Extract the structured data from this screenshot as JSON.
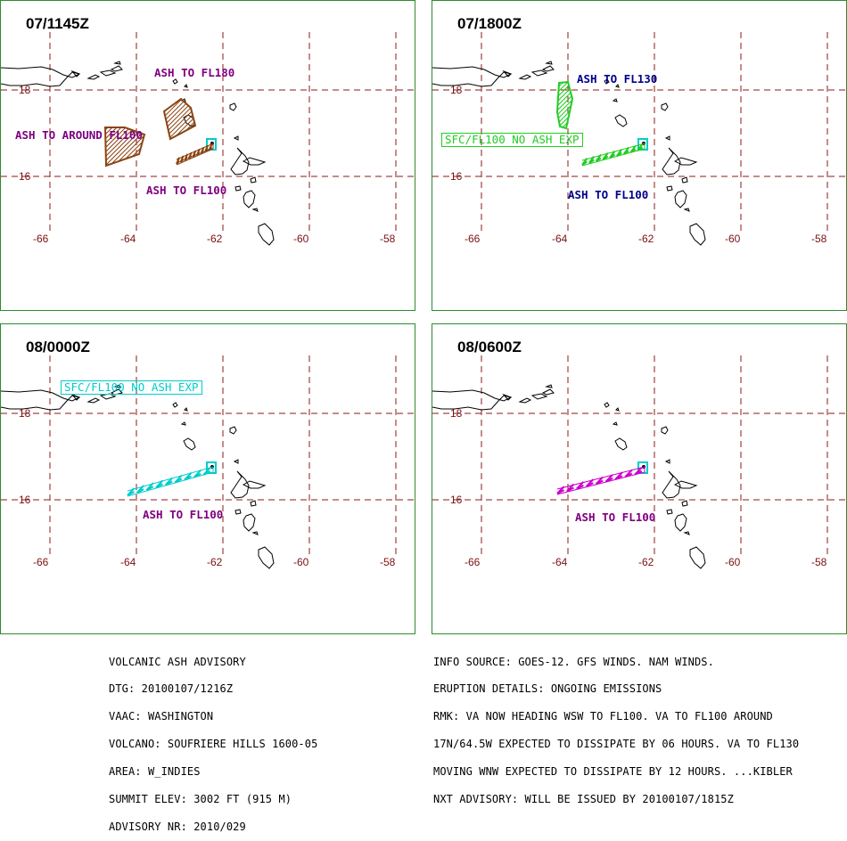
{
  "panels": [
    {
      "time": "07/1145Z",
      "labels": [
        {
          "text": "ASH TO FL180",
          "color": "#800080"
        },
        {
          "text": "ASH TO AROUND FL100",
          "color": "#800080"
        },
        {
          "text": "ASH TO FL100",
          "color": "#800080"
        }
      ]
    },
    {
      "time": "07/1800Z",
      "labels": [
        {
          "text": "ASH TO FL130",
          "color": "#00008b"
        },
        {
          "text": "ASH TO FL100",
          "color": "#00008b"
        }
      ],
      "box_label": {
        "text": "SFC/FL100 NO ASH EXP",
        "color": "#22cc22"
      }
    },
    {
      "time": "08/0000Z",
      "labels": [
        {
          "text": "ASH TO FL100",
          "color": "#800080"
        }
      ],
      "box_label": {
        "text": "SFC/FL100 NO ASH EXP",
        "color": "#00cccc"
      }
    },
    {
      "time": "08/0600Z",
      "labels": [
        {
          "text": "ASH TO FL100",
          "color": "#800080"
        }
      ]
    }
  ],
  "axes": {
    "lat_labels": [
      "18",
      "16"
    ],
    "lon_labels": [
      "-66",
      "-64",
      "-62",
      "-60",
      "-58"
    ]
  },
  "colors": {
    "border": "#2e8b2e",
    "grid": "#8b1a1a",
    "coast": "#000000",
    "volcano": "#00cccc",
    "ash_1145": "#8b4513",
    "ash_1800": "#22cc22",
    "ash_0000": "#00cccc",
    "ash_0600": "#cc00cc"
  },
  "advisory": {
    "left": [
      "VOLCANIC ASH ADVISORY",
      "DTG: 20100107/1216Z",
      "VAAC: WASHINGTON",
      "VOLCANO: SOUFRIERE HILLS 1600-05",
      "AREA: W_INDIES",
      "SUMMIT ELEV: 3002 FT (915 M)",
      "ADVISORY NR: 2010/029"
    ],
    "right": [
      "INFO SOURCE: GOES-12. GFS WINDS. NAM WINDS.",
      "ERUPTION DETAILS: ONGOING EMISSIONS",
      "RMK: VA NOW HEADING WSW TO FL100. VA TO FL100 AROUND",
      "17N/64.5W EXPECTED TO DISSIPATE BY 06 HOURS. VA TO FL130",
      "MOVING WNW EXPECTED TO DISSIPATE BY 12 HOURS. ...KIBLER",
      "NXT ADVISORY: WILL BE ISSUED BY 20100107/1815Z"
    ]
  }
}
